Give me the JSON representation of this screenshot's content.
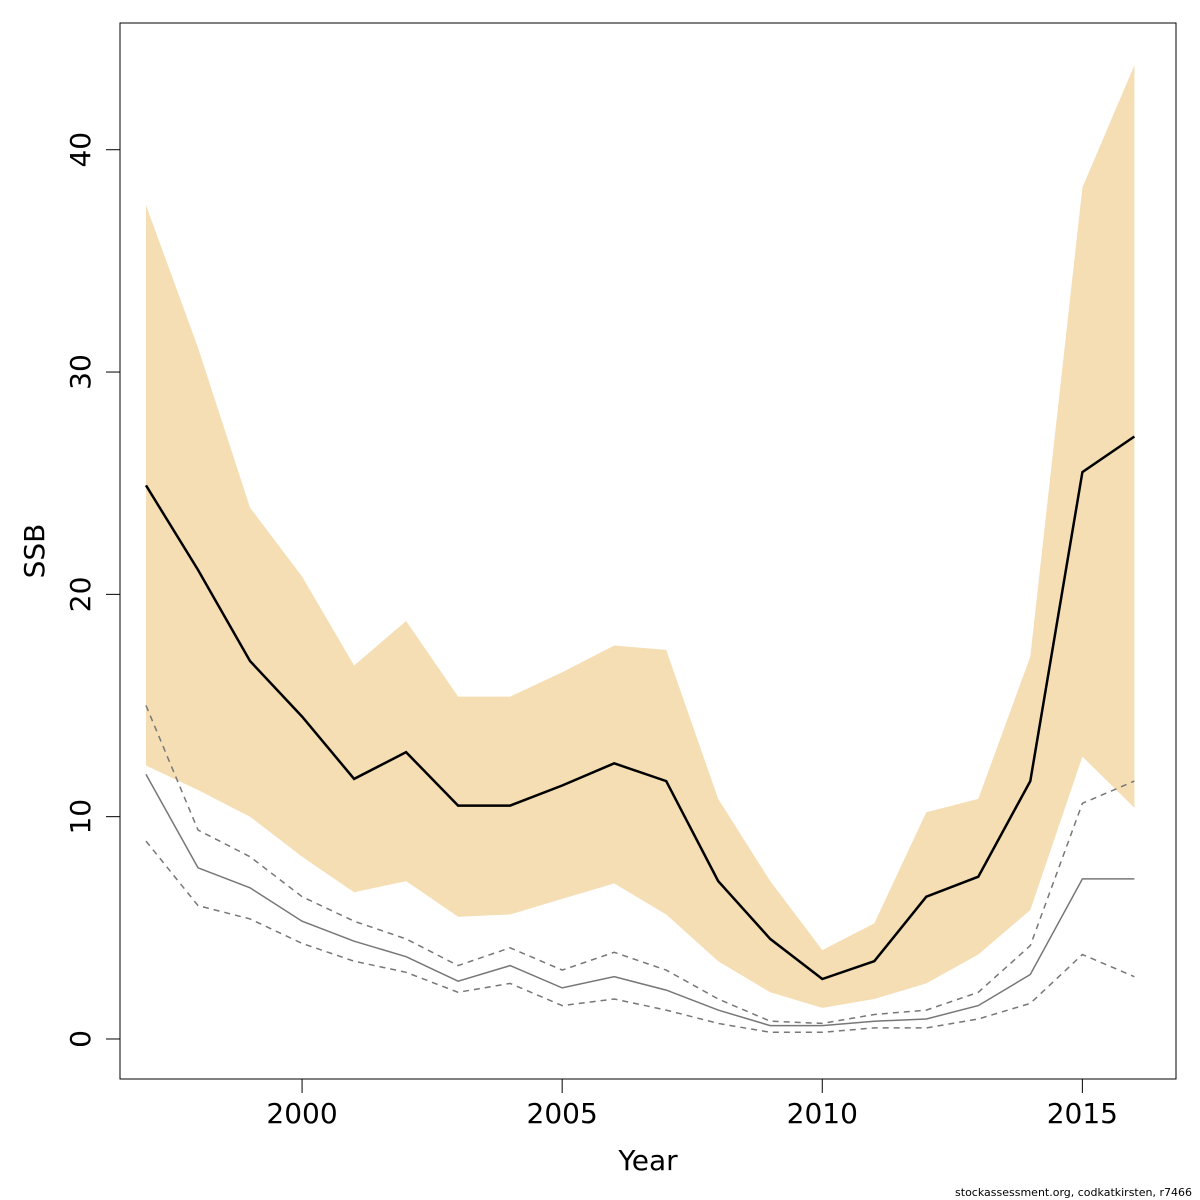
{
  "chart_data": {
    "type": "line",
    "xlabel": "Year",
    "ylabel": "SSB",
    "xlim": [
      1996.5,
      2016.8
    ],
    "ylim": [
      -1.8,
      45.7
    ],
    "x_ticks": [
      2000,
      2005,
      2010,
      2015
    ],
    "y_ticks": [
      0,
      10,
      20,
      30,
      40
    ],
    "grid": false,
    "colors": {
      "band": "#f5deb3",
      "estimate": "#000000",
      "comparison": "#777777"
    },
    "x": [
      1997,
      1998,
      1999,
      2000,
      2001,
      2002,
      2003,
      2004,
      2005,
      2006,
      2007,
      2008,
      2009,
      2010,
      2011,
      2012,
      2013,
      2014,
      2015,
      2016
    ],
    "series": [
      {
        "role": "estimate",
        "values": [
          24.9,
          21.1,
          17.0,
          14.5,
          11.7,
          12.9,
          10.5,
          10.5,
          11.4,
          12.4,
          11.6,
          7.1,
          4.5,
          2.7,
          3.5,
          6.4,
          7.3,
          11.6,
          25.5,
          27.1
        ]
      },
      {
        "role": "band_upper",
        "values": [
          37.5,
          31.1,
          23.9,
          20.8,
          16.8,
          18.8,
          15.4,
          15.4,
          16.5,
          17.7,
          17.5,
          10.8,
          7.1,
          4.0,
          5.2,
          10.2,
          10.8,
          17.2,
          38.3,
          43.8
        ]
      },
      {
        "role": "band_lower",
        "values": [
          12.3,
          11.2,
          10.0,
          8.2,
          6.6,
          7.1,
          5.5,
          5.6,
          6.3,
          7.0,
          5.6,
          3.5,
          2.1,
          1.4,
          1.8,
          2.5,
          3.8,
          5.8,
          12.7,
          10.4
        ]
      },
      {
        "role": "comparison",
        "values": [
          11.9,
          7.7,
          6.8,
          5.3,
          4.4,
          3.7,
          2.6,
          3.3,
          2.3,
          2.8,
          2.2,
          1.3,
          0.6,
          0.6,
          0.8,
          0.9,
          1.5,
          2.9,
          7.2,
          7.2
        ]
      },
      {
        "role": "comparison_upper",
        "values": [
          15.0,
          9.4,
          8.2,
          6.4,
          5.3,
          4.5,
          3.3,
          4.1,
          3.1,
          3.9,
          3.1,
          1.8,
          0.8,
          0.7,
          1.1,
          1.3,
          2.1,
          4.2,
          10.6,
          11.6
        ]
      },
      {
        "role": "comparison_lower",
        "values": [
          8.9,
          6.0,
          5.4,
          4.3,
          3.5,
          3.0,
          2.1,
          2.5,
          1.5,
          1.8,
          1.3,
          0.7,
          0.3,
          0.3,
          0.5,
          0.5,
          0.9,
          1.6,
          3.8,
          2.8
        ]
      }
    ]
  },
  "footer_text": "stockassessment.org, codkatkirsten, r7466"
}
